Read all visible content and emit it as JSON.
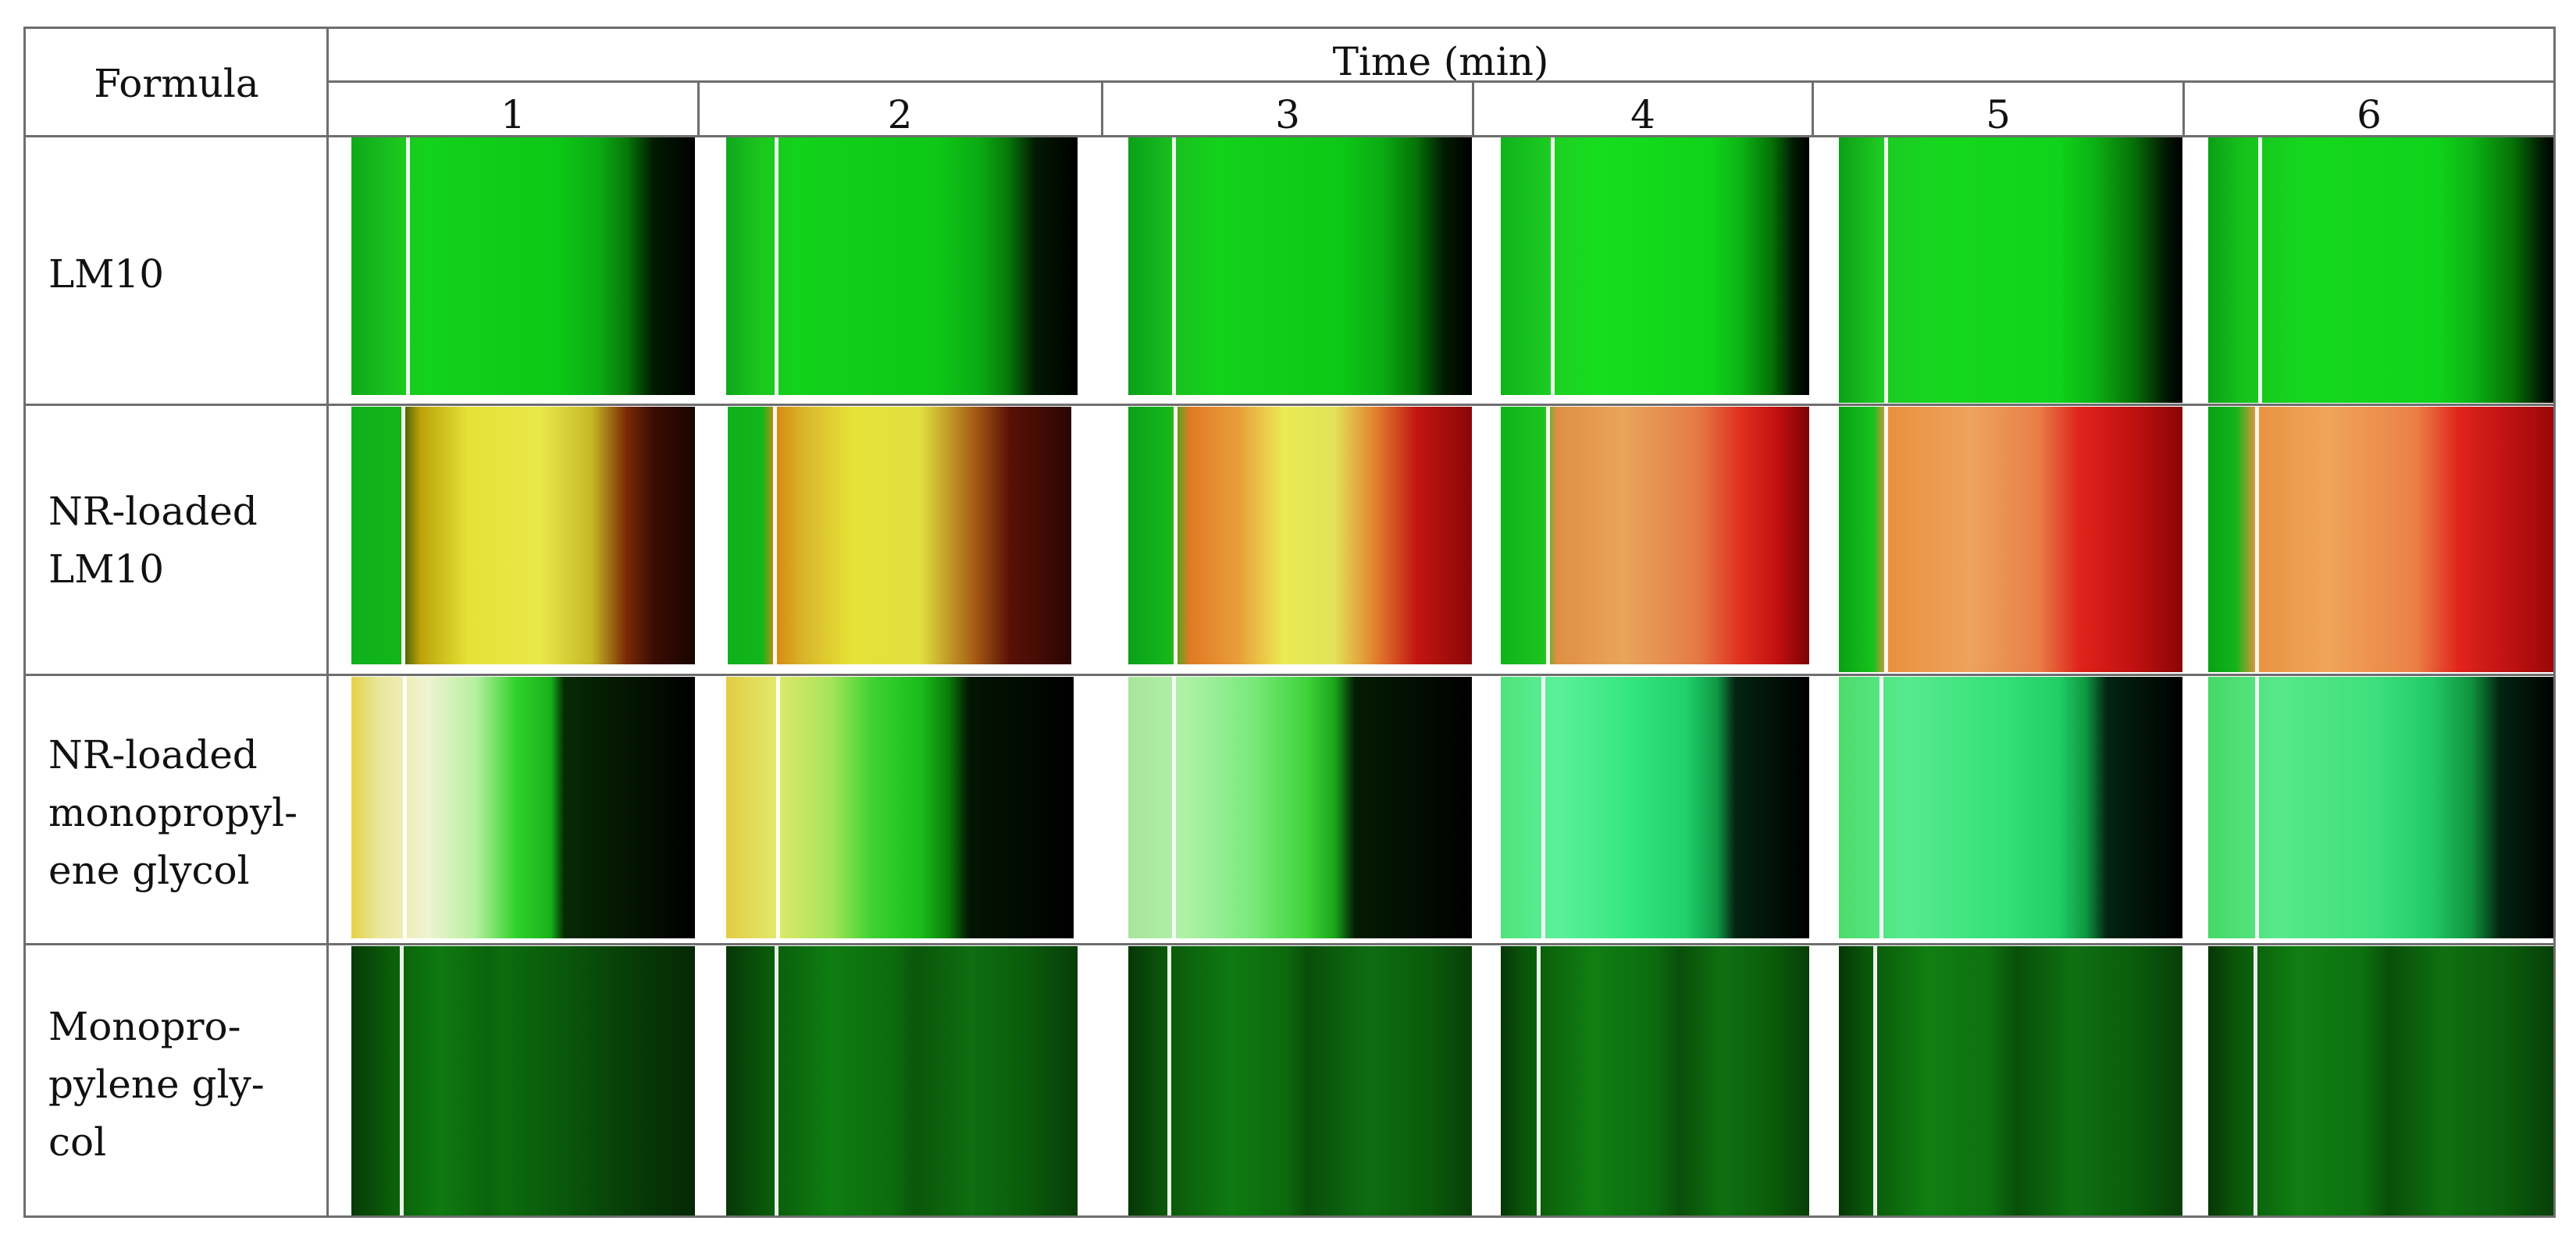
{
  "table": {
    "header": {
      "formula_label": "Formula",
      "time_label": "Time (min)",
      "time_points": [
        "1",
        "2",
        "3",
        "4",
        "5",
        "6"
      ]
    },
    "rows": [
      {
        "label_lines": [
          "LM10"
        ],
        "images": [
          "fluorescence-micrograph-green-with-dark-right-edge",
          "fluorescence-micrograph-green-with-dark-right-edge",
          "fluorescence-micrograph-green-with-dark-right-edge",
          "fluorescence-micrograph-green-with-dark-right-edge",
          "fluorescence-micrograph-green-with-dark-right-edge",
          "fluorescence-micrograph-green-with-dark-right-edge"
        ]
      },
      {
        "label_lines": [
          "NR-loaded",
          "LM10"
        ],
        "images": [
          "fluorescence-micrograph-green-yellow-to-dark-red",
          "fluorescence-micrograph-green-yellow-to-dark-red",
          "fluorescence-micrograph-green-orange-yellow-red",
          "fluorescence-micrograph-green-orange-red",
          "fluorescence-micrograph-green-orange-red",
          "fluorescence-micrograph-green-orange-red"
        ]
      },
      {
        "label_lines": [
          "NR-loaded",
          "monopropyl-",
          "ene glycol"
        ],
        "images": [
          "fluorescence-micrograph-yellow-white-green-black",
          "fluorescence-micrograph-yellow-green-black",
          "fluorescence-micrograph-light-green-black",
          "fluorescence-micrograph-mint-green-black",
          "fluorescence-micrograph-mint-green-black",
          "fluorescence-micrograph-mint-green-black"
        ]
      },
      {
        "label_lines": [
          "Monopro-",
          "pylene gly-",
          "col"
        ],
        "images": [
          "fluorescence-micrograph-dark-green",
          "fluorescence-micrograph-dark-green",
          "fluorescence-micrograph-dark-green",
          "fluorescence-micrograph-dark-green",
          "fluorescence-micrograph-dark-green",
          "fluorescence-micrograph-dark-green"
        ]
      }
    ]
  }
}
